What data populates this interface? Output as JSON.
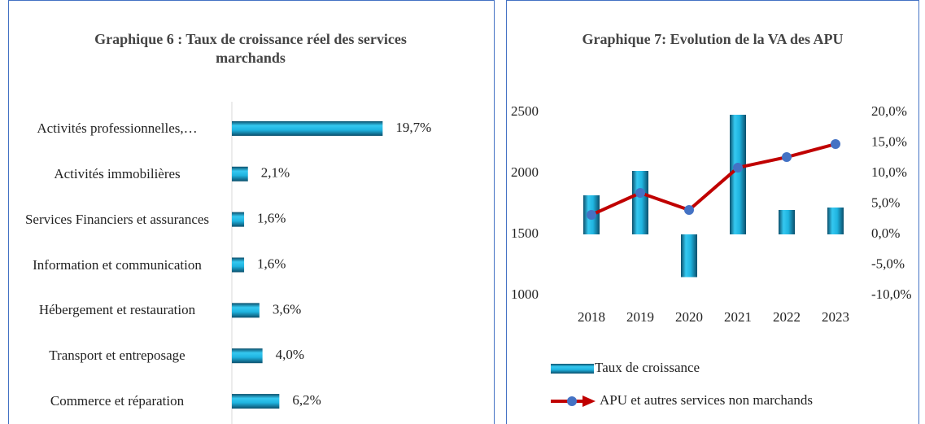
{
  "chart_data": [
    {
      "type": "hbar",
      "title": "Graphique 6 : Taux de croissance réel des services marchands",
      "categories": [
        "Activités professionnelles,…",
        "Activités immobilières",
        "Services Financiers et assurances",
        "Information et communication",
        "Hébergement et restauration",
        "Transport et entreposage",
        "Commerce et réparation"
      ],
      "values": [
        19.7,
        2.1,
        1.6,
        1.6,
        3.6,
        4.0,
        6.2
      ],
      "value_labels": [
        "19,7%",
        "2,1%",
        "1,6%",
        "1,6%",
        "3,6%",
        "4,0%",
        "6,2%"
      ],
      "color": "#1fb4e0",
      "xlim": [
        0,
        22
      ]
    },
    {
      "type": "bar-line",
      "title": "Graphique 7: Evolution de la VA des APU",
      "categories": [
        "2018",
        "2019",
        "2020",
        "2021",
        "2022",
        "2023"
      ],
      "series": [
        {
          "name": "Taux de croissance",
          "color": "#1fb4e0",
          "axis": "y2",
          "type": "bar",
          "values": [
            6.4,
            10.4,
            -7.0,
            19.6,
            4.0,
            4.4
          ]
        },
        {
          "name": "APU et autres services non marchands",
          "color": "#c00000",
          "marker_color": "#4472c4",
          "type": "line",
          "values": [
            1660,
            1840,
            1700,
            2047,
            2133,
            2240
          ]
        }
      ],
      "ylim": [
        1000,
        2500
      ],
      "yticks": [
        1000,
        1500,
        2000,
        2500
      ],
      "y2lim": [
        -10,
        20
      ],
      "y2ticks": [
        {
          "value": -10,
          "label": "-10,0%"
        },
        {
          "value": -5,
          "label": "-5,0%"
        },
        {
          "value": 0,
          "label": "0,0%"
        },
        {
          "value": 5,
          "label": "5,0%"
        },
        {
          "value": 10,
          "label": "10,0%"
        },
        {
          "value": 15,
          "label": "15,0%"
        },
        {
          "value": 20,
          "label": "20,0%"
        }
      ],
      "legend": "bottom"
    }
  ]
}
